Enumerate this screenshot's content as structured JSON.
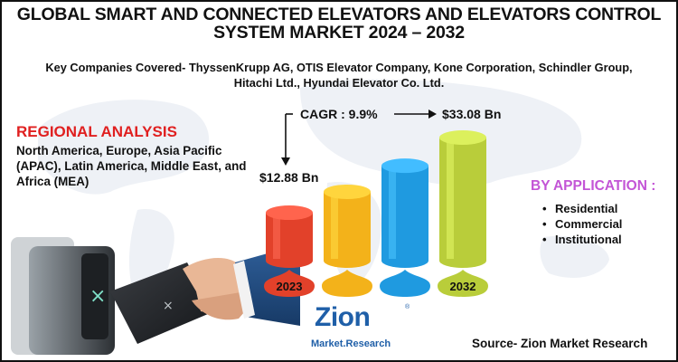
{
  "header": {
    "title_line1": "GLOBAL SMART AND CONNECTED ELEVATORS AND ELEVATORS CONTROL",
    "title_line2": "SYSTEM MARKET 2024 – 2032",
    "companies_line1": "Key Companies Covered- ThyssenKrupp AG, OTIS Elevator Company, Kone Corporation, Schindler Group,",
    "companies_line2": "Hitachi Ltd., Hyundai Elevator Co. Ltd."
  },
  "regional": {
    "title": "REGIONAL ANALYSIS",
    "text": "North America, Europe, Asia Pacific (APAC), Latin America, Middle East, and Africa (MEA)"
  },
  "application": {
    "title": "BY APPLICATION :",
    "items": [
      "Residential",
      "Commercial",
      "Institutional"
    ]
  },
  "chart_data": {
    "type": "bar",
    "categories": [
      "2023",
      "",
      "",
      "2032"
    ],
    "values": [
      12.88,
      18.5,
      25.5,
      33.08
    ],
    "value_labels": [
      "$12.88 Bn",
      "",
      "",
      "$33.08 Bn"
    ],
    "cagr_label": "CAGR : 9.9%",
    "bar_colors": [
      "#e2412a",
      "#f3b21a",
      "#1f9ae0",
      "#b9cd3a"
    ],
    "title": "",
    "xlabel": "",
    "ylabel": ""
  },
  "logo": {
    "main": "Zion",
    "sub": "Market.Research",
    "reg": "®"
  },
  "footer": {
    "source": "Source- Zion Market Research"
  }
}
